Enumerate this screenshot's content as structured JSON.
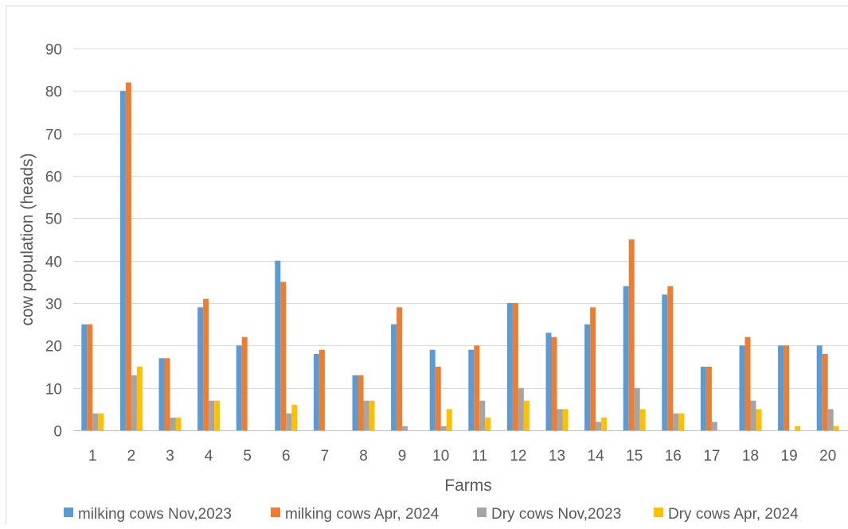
{
  "chart_data": {
    "type": "bar",
    "title": "",
    "xlabel": "Farms",
    "ylabel": "cow population (heads)",
    "ylim": [
      0,
      90
    ],
    "ytick_step": 10,
    "grid": true,
    "legend_position": "bottom",
    "categories": [
      "1",
      "2",
      "3",
      "4",
      "5",
      "6",
      "7",
      "8",
      "9",
      "10",
      "11",
      "12",
      "13",
      "14",
      "15",
      "16",
      "17",
      "18",
      "19",
      "20"
    ],
    "series": [
      {
        "name": "milking cows Nov,2023",
        "color": "#5B9BD5",
        "values": [
          25,
          80,
          17,
          29,
          20,
          40,
          18,
          13,
          25,
          19,
          19,
          30,
          23,
          25,
          34,
          32,
          15,
          20,
          20,
          20
        ]
      },
      {
        "name": "milking cows Apr, 2024",
        "color": "#ED7D31",
        "values": [
          25,
          82,
          17,
          31,
          22,
          35,
          19,
          13,
          29,
          15,
          20,
          30,
          22,
          29,
          45,
          34,
          15,
          22,
          20,
          18
        ]
      },
      {
        "name": "Dry cows Nov,2023",
        "color": "#A5A5A5",
        "values": [
          4,
          13,
          3,
          7,
          0,
          4,
          0,
          7,
          1,
          1,
          7,
          10,
          5,
          2,
          10,
          4,
          2,
          7,
          0,
          5
        ]
      },
      {
        "name": "Dry cows Apr, 2024",
        "color": "#FFC000",
        "values": [
          4,
          15,
          3,
          7,
          0,
          6,
          0,
          7,
          0,
          5,
          3,
          7,
          5,
          3,
          5,
          4,
          0,
          5,
          1,
          1
        ]
      }
    ]
  }
}
